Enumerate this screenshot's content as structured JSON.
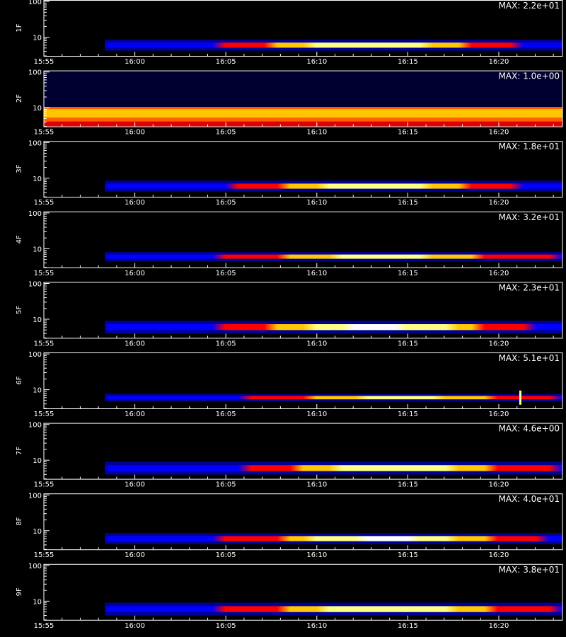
{
  "chart_data": {
    "type": "heatmap",
    "colormap": [
      "#000000",
      "#000080",
      "#0000ff",
      "#ff0000",
      "#ffc800",
      "#ffff80",
      "#ffffff"
    ],
    "x_tick_labels": [
      "15:55",
      "16:00",
      "16:05",
      "16:10",
      "16:15",
      "16:20"
    ],
    "y_scale": "log",
    "ylim": [
      3,
      110
    ],
    "y_tick_labels": [
      "10",
      "100"
    ],
    "xlabel": "",
    "panels": [
      {
        "ylabel": "1F",
        "max_label": "MAX: 2.2e+01"
      },
      {
        "ylabel": "2F",
        "max_label": "MAX: 1.0e+00"
      },
      {
        "ylabel": "3F",
        "max_label": "MAX: 1.8e+01"
      },
      {
        "ylabel": "4F",
        "max_label": "MAX: 3.2e+01"
      },
      {
        "ylabel": "5F",
        "max_label": "MAX: 2.3e+01"
      },
      {
        "ylabel": "6F",
        "max_label": "MAX: 5.1e+01"
      },
      {
        "ylabel": "7F",
        "max_label": "MAX: 4.6e+00"
      },
      {
        "ylabel": "8F",
        "max_label": "MAX: 4.0e+01"
      },
      {
        "ylabel": "9F",
        "max_label": "MAX: 3.8e+01"
      }
    ]
  }
}
